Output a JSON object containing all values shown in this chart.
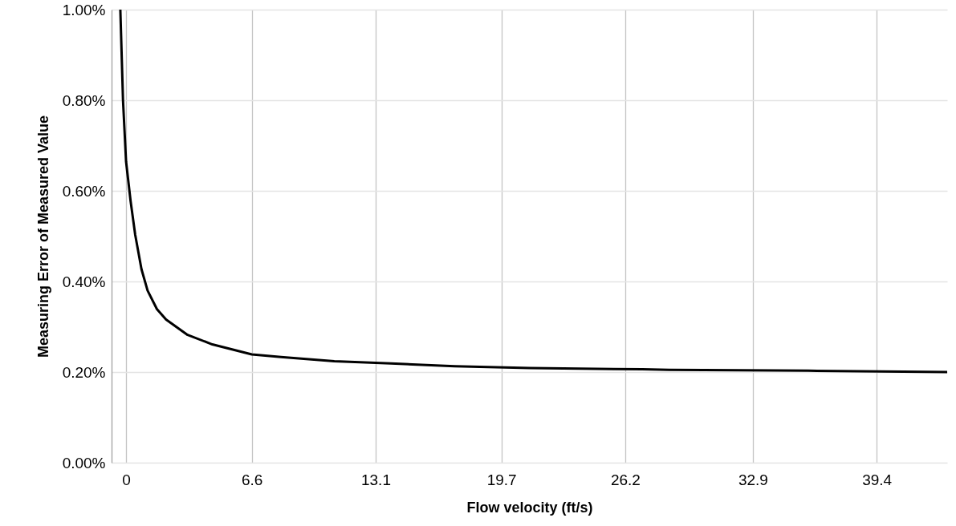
{
  "chart_data": {
    "type": "line",
    "xlabel": "Flow velocity (ft/s)",
    "ylabel": "Measuring Error of Measured Value",
    "xlim": [
      -0.76,
      43.1
    ],
    "xticks": [
      0,
      6.6,
      13.1,
      19.7,
      26.2,
      32.9,
      39.4
    ],
    "ylim": [
      0,
      1.0
    ],
    "yticks": [
      {
        "value": 0,
        "label": "0.00%"
      },
      {
        "value": 0.2,
        "label": "0.20%"
      },
      {
        "value": 0.4,
        "label": "0.40%"
      },
      {
        "value": 0.6,
        "label": "0.60%"
      },
      {
        "value": 0.8,
        "label": "0.80%"
      },
      {
        "value": 1.0,
        "label": "1.00%"
      }
    ],
    "grid": true,
    "marker": "none",
    "line_style": "solid",
    "series": [
      {
        "color": "#000000",
        "x": [
          -0.3,
          -0.16,
          0,
          0.24,
          0.48,
          0.81,
          1.13,
          1.62,
          2.1,
          3.23,
          4.53,
          6.6,
          8.13,
          10.93,
          13.9,
          17.25,
          21.2,
          27.1,
          28.5,
          35.8,
          43.1
        ],
        "values": [
          1.0,
          0.8,
          0.665,
          0.577,
          0.503,
          0.427,
          0.38,
          0.339,
          0.316,
          0.282,
          0.261,
          0.239,
          0.233,
          0.224,
          0.219,
          0.213,
          0.209,
          0.206,
          0.205,
          0.203,
          0.2
        ]
      }
    ]
  }
}
